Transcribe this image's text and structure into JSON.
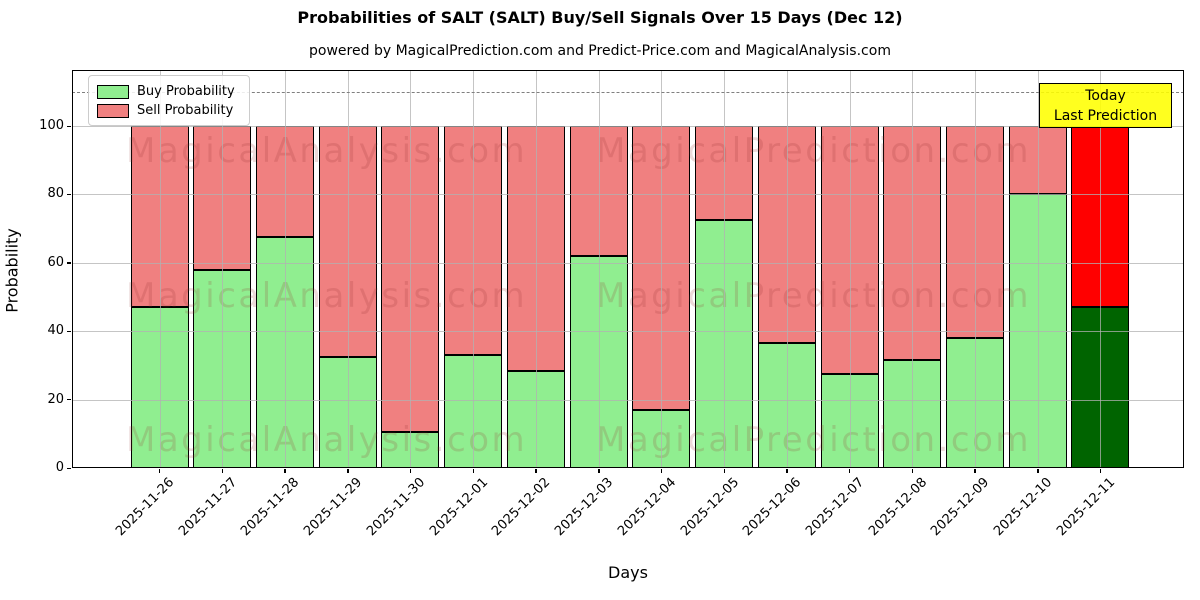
{
  "header": {
    "title": "Probabilities of SALT (SALT) Buy/Sell Signals Over 15 Days (Dec 12)",
    "subtitle": "powered by MagicalPrediction.com and Predict-Price.com and MagicalAnalysis.com"
  },
  "legend": {
    "items": [
      {
        "label": "Buy Probability",
        "color": "#90ee90"
      },
      {
        "label": "Sell Probability",
        "color": "#f08080"
      }
    ]
  },
  "annotation": {
    "line1": "Today",
    "line2": "Last Prediction",
    "bg_color": "#ffff00"
  },
  "watermarks": {
    "left_text": "MagicalAnalysis.com",
    "right_text": "MagicalPrediction.com"
  },
  "chart_data": {
    "type": "bar",
    "stacked": true,
    "title": "Probabilities of SALT (SALT) Buy/Sell Signals Over 15 Days (Dec 12)",
    "xlabel": "Days",
    "ylabel": "Probability",
    "categories": [
      "2025-11-26",
      "2025-11-27",
      "2025-11-28",
      "2025-11-29",
      "2025-11-30",
      "2025-12-01",
      "2025-12-02",
      "2025-12-03",
      "2025-12-04",
      "2025-12-05",
      "2025-12-06",
      "2025-12-07",
      "2025-12-08",
      "2025-12-09",
      "2025-12-10",
      "2025-12-11"
    ],
    "series": [
      {
        "name": "Buy Probability",
        "color": "#90ee90",
        "values": [
          47,
          58,
          67.5,
          32.5,
          10.5,
          33,
          28.5,
          62,
          17,
          72.5,
          36.5,
          27.5,
          31.5,
          38,
          80,
          47
        ]
      },
      {
        "name": "Sell Probability",
        "color": "#f08080",
        "values": [
          53,
          42,
          32.5,
          67.5,
          89.5,
          67,
          71.5,
          38,
          83,
          27.5,
          63.5,
          72.5,
          68.5,
          62,
          20,
          53
        ]
      }
    ],
    "last_bar_colors": {
      "buy": "#006400",
      "sell": "#ff0000"
    },
    "bar_edge_color": "#000000",
    "yticks": [
      0,
      20,
      40,
      60,
      80,
      100
    ],
    "ylim": [
      0,
      116
    ],
    "dashed_line_y": 110,
    "grid": true,
    "legend_position": "upper left"
  }
}
